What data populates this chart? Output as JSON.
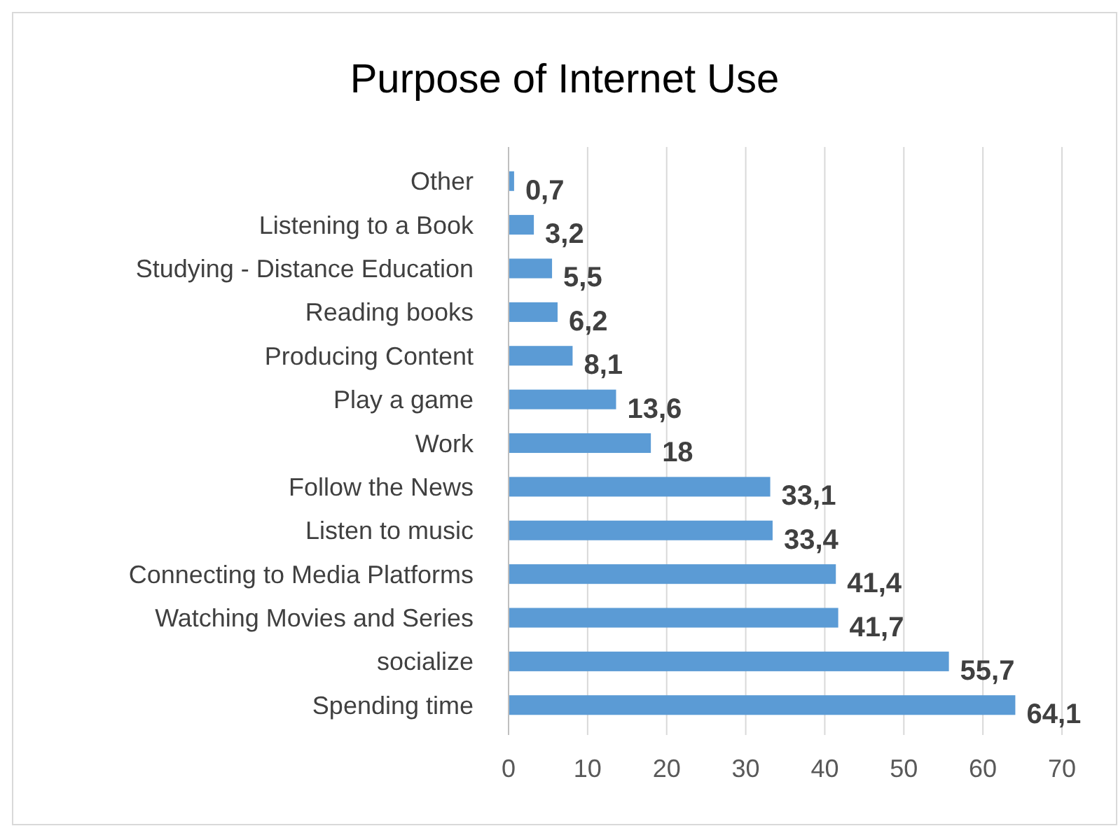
{
  "chart_data": {
    "type": "bar",
    "orientation": "horizontal",
    "title": "Purpose of Internet Use",
    "categories": [
      "Other",
      "Listening to a Book",
      "Studying - Distance Education",
      "Reading books",
      "Producing Content",
      "Play a game",
      "Work",
      "Follow the News",
      "Listen to music",
      "Connecting to Media Platforms",
      "Watching Movies and Series",
      "socialize",
      "Spending time"
    ],
    "values": [
      0.7,
      3.2,
      5.5,
      6.2,
      8.1,
      13.6,
      18,
      33.1,
      33.4,
      41.4,
      41.7,
      55.7,
      64.1
    ],
    "value_labels": [
      "0,7",
      "3,2",
      "5,5",
      "6,2",
      "8,1",
      "13,6",
      "18",
      "33,1",
      "33,4",
      "41,4",
      "41,7",
      "55,7",
      "64,1"
    ],
    "color": "#5b9bd5",
    "xlim": [
      0,
      70
    ],
    "xticks": [
      0,
      10,
      20,
      30,
      40,
      50,
      60,
      70
    ],
    "grid": "x"
  }
}
